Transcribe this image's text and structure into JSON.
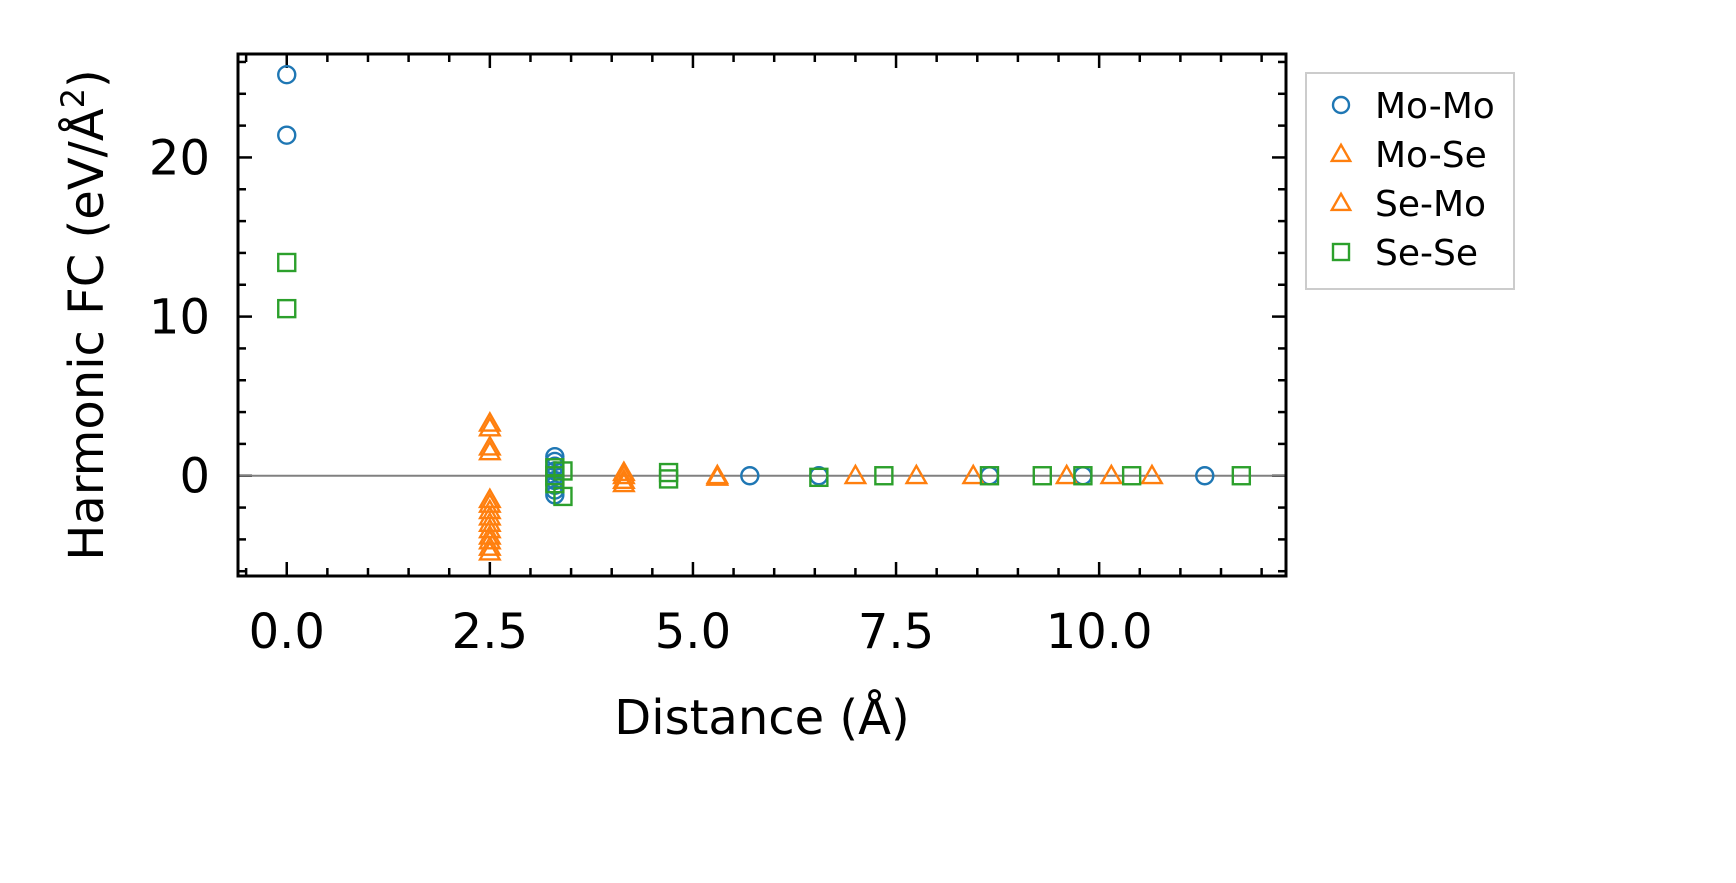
{
  "colors": {
    "mo_mo": "#1f77b4",
    "mo_se": "#ff7f0e",
    "se_mo": "#ff7f0e",
    "se_se": "#2ca02c",
    "zero_line": "#808080",
    "axes": "#000000"
  },
  "chart_data": {
    "type": "scatter",
    "title": "",
    "xlabel": "Distance (Å)",
    "ylabel_main": "Harmonic FC (eV/Å",
    "ylabel_sup": "2",
    "ylabel_close": ")",
    "xlim": [
      -0.6,
      12.3
    ],
    "ylim": [
      -6.3,
      26.5
    ],
    "xticks": [
      0.0,
      2.5,
      5.0,
      7.5,
      10.0
    ],
    "xtick_labels": [
      "0.0",
      "2.5",
      "5.0",
      "7.5",
      "10.0"
    ],
    "yticks": [
      0,
      10,
      20
    ],
    "ytick_labels": [
      "0",
      "10",
      "20"
    ],
    "zero_line": true,
    "legend_position": "outside-right-top",
    "series": [
      {
        "name": "Mo-Mo",
        "marker": "circle",
        "color_key": "mo_mo",
        "points": [
          [
            0.0,
            25.2
          ],
          [
            0.0,
            21.4
          ],
          [
            3.3,
            1.2
          ],
          [
            3.3,
            0.9
          ],
          [
            3.3,
            0.6
          ],
          [
            3.3,
            0.3
          ],
          [
            3.3,
            0.0
          ],
          [
            3.3,
            -0.3
          ],
          [
            3.3,
            -0.6
          ],
          [
            3.3,
            -0.9
          ],
          [
            3.3,
            -1.2
          ],
          [
            5.7,
            0.0
          ],
          [
            6.55,
            0.0
          ],
          [
            8.65,
            0.0
          ],
          [
            9.8,
            0.0
          ],
          [
            11.3,
            0.0
          ]
        ]
      },
      {
        "name": "Mo-Se",
        "marker": "triangle",
        "color_key": "mo_se",
        "points": [
          [
            2.5,
            3.3
          ],
          [
            2.5,
            1.5
          ],
          [
            2.5,
            -1.5
          ],
          [
            2.5,
            -2.2
          ],
          [
            2.5,
            -3.0
          ],
          [
            2.5,
            -3.8
          ],
          [
            2.5,
            -4.5
          ],
          [
            4.15,
            0.2
          ],
          [
            4.15,
            -0.3
          ],
          [
            5.3,
            0.0
          ],
          [
            7.0,
            0.0
          ],
          [
            8.45,
            0.0
          ],
          [
            10.15,
            0.0
          ]
        ]
      },
      {
        "name": "Se-Mo",
        "marker": "triangle",
        "color_key": "se_mo",
        "points": [
          [
            2.5,
            3.0
          ],
          [
            2.5,
            1.8
          ],
          [
            2.5,
            -1.8
          ],
          [
            2.5,
            -2.6
          ],
          [
            2.5,
            -3.4
          ],
          [
            2.5,
            -4.1
          ],
          [
            2.5,
            -4.8
          ],
          [
            4.15,
            0.0
          ],
          [
            4.15,
            -0.5
          ],
          [
            5.3,
            -0.1
          ],
          [
            7.75,
            0.0
          ],
          [
            9.6,
            0.0
          ],
          [
            10.65,
            0.0
          ]
        ]
      },
      {
        "name": "Se-Se",
        "marker": "square",
        "color_key": "se_se",
        "points": [
          [
            0.0,
            13.4
          ],
          [
            0.0,
            10.5
          ],
          [
            3.3,
            0.5
          ],
          [
            3.3,
            0.0
          ],
          [
            3.3,
            -0.5
          ],
          [
            3.4,
            0.3
          ],
          [
            3.4,
            -1.3
          ],
          [
            4.7,
            0.2
          ],
          [
            4.7,
            -0.2
          ],
          [
            6.55,
            -0.1
          ],
          [
            7.35,
            0.0
          ],
          [
            8.65,
            0.0
          ],
          [
            9.3,
            0.0
          ],
          [
            9.8,
            0.0
          ],
          [
            10.4,
            0.0
          ],
          [
            11.75,
            0.0
          ]
        ]
      }
    ]
  }
}
